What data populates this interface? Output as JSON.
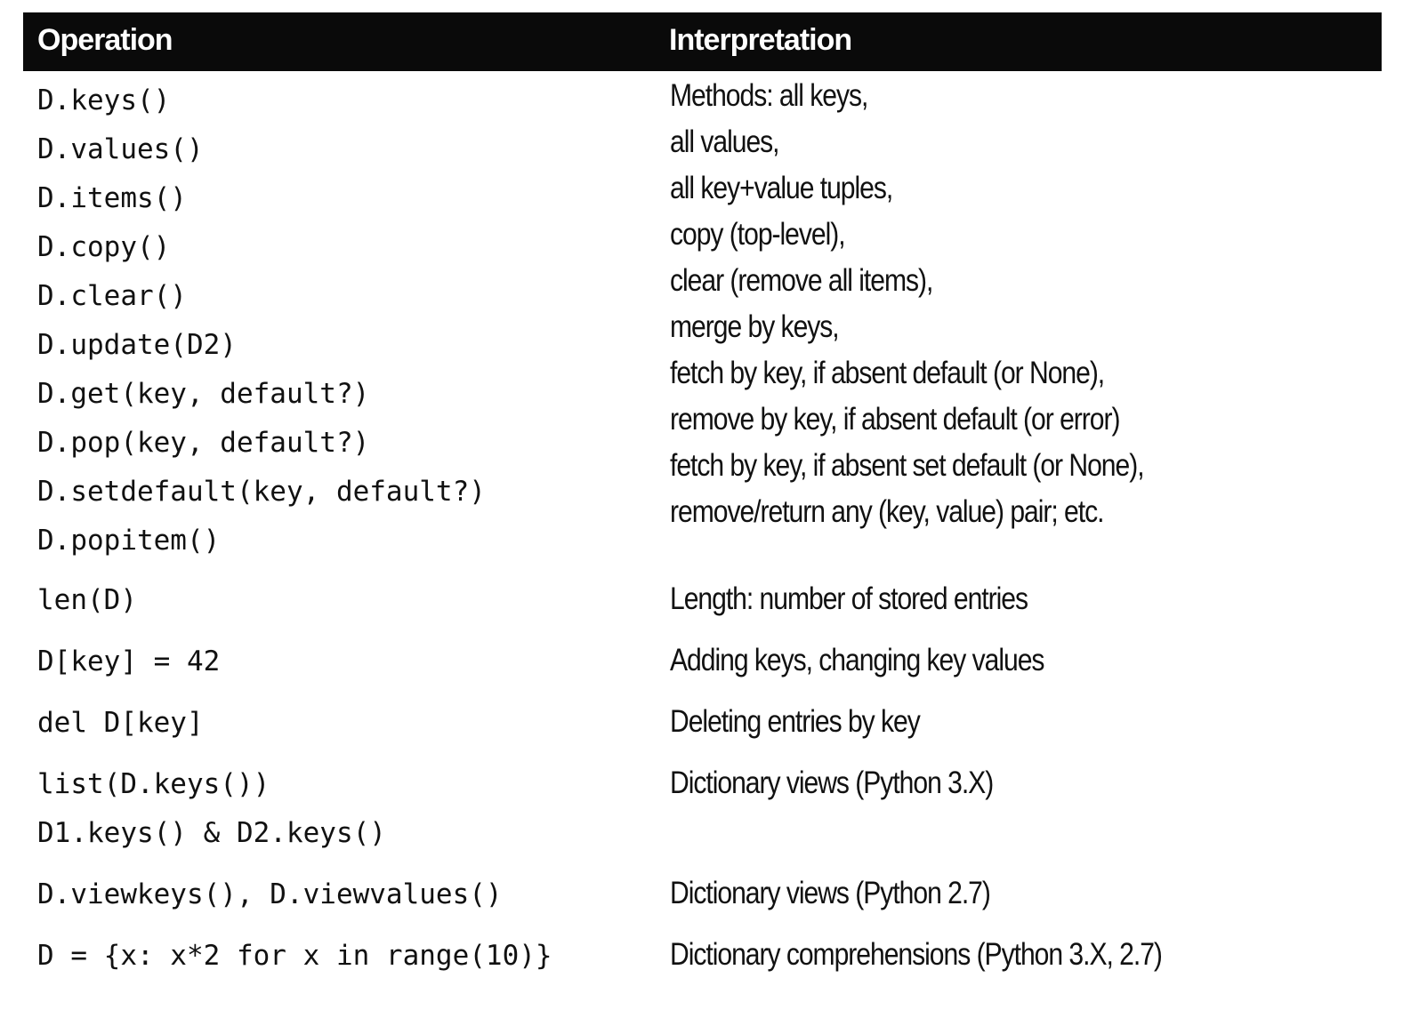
{
  "header": {
    "col1": "Operation",
    "col2": "Interpretation"
  },
  "groups": [
    {
      "ops": [
        "D.keys()",
        "D.values()",
        "D.items()",
        "D.copy()",
        "D.clear()",
        "D.update(D2)",
        "D.get(key, default?)",
        "D.pop(key, default?)",
        "D.setdefault(key, default?)",
        "D.popitem()"
      ],
      "interps": [
        "Methods: all keys,",
        "all values,",
        "all key+value tuples,",
        "copy (top-level),",
        "clear (remove all items),",
        "merge by keys,",
        "fetch by key, if absent default (or None),",
        "remove by key, if absent default (or error)",
        "fetch by key, if absent set default (or None),",
        "remove/return any (key, value) pair; etc."
      ]
    },
    {
      "ops": [
        "len(D)"
      ],
      "interps": [
        "Length: number of stored entries"
      ]
    },
    {
      "ops": [
        "D[key] = 42"
      ],
      "interps": [
        "Adding keys, changing key values"
      ]
    },
    {
      "ops": [
        "del D[key]"
      ],
      "interps": [
        "Deleting entries by key"
      ]
    },
    {
      "ops": [
        "list(D.keys())",
        "D1.keys() & D2.keys()"
      ],
      "interps": [
        "Dictionary views (Python 3.X)"
      ]
    },
    {
      "ops": [
        "D.viewkeys(), D.viewvalues()"
      ],
      "interps": [
        "Dictionary views (Python 2.7)"
      ]
    },
    {
      "ops": [
        "D = {x: x*2 for x in range(10)}"
      ],
      "interps": [
        "Dictionary comprehensions (Python 3.X, 2.7)"
      ]
    }
  ]
}
